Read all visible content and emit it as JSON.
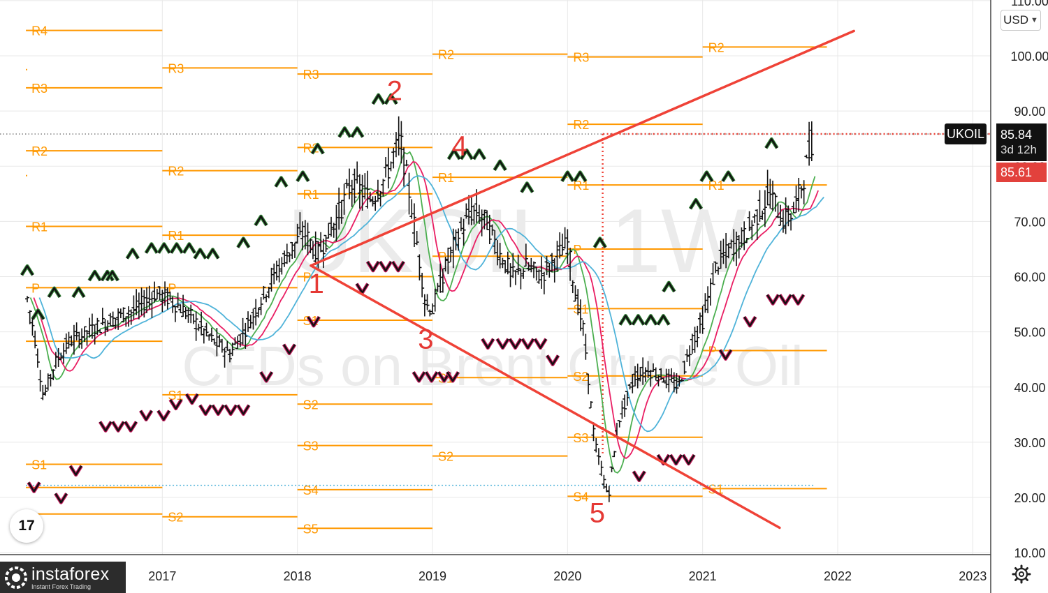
{
  "chart_data": {
    "type": "candlestick",
    "symbol": "UKOIL",
    "timeframe": "1W",
    "watermark_symbol": "UKOIL, 1W",
    "watermark_desc": "CFDs on Brent Crude Oil",
    "currency": "USD",
    "y_ticks": [
      "10.00",
      "20.00",
      "30.00",
      "40.00",
      "50.00",
      "60.00",
      "70.00",
      "80.00",
      "90.00",
      "100.00",
      "110.00"
    ],
    "y_tick_values": [
      10,
      20,
      30,
      40,
      50,
      60,
      70,
      80,
      90,
      100,
      110
    ],
    "ylim": [
      10,
      110
    ],
    "x_ticks": [
      "2017",
      "2018",
      "2019",
      "2020",
      "2021",
      "2022",
      "2023"
    ],
    "x_tick_values": [
      2017,
      2018,
      2019,
      2020,
      2021,
      2022,
      2023
    ],
    "xlim": [
      2015.99,
      2023.1
    ],
    "current_price": "85.84",
    "countdown": "3d 12h",
    "last_price": "85.61",
    "current_value": 85.84,
    "last_value": 85.61,
    "price_series": [
      {
        "x": 2016.0,
        "y": 56
      },
      {
        "x": 2016.05,
        "y": 50
      },
      {
        "x": 2016.12,
        "y": 38
      },
      {
        "x": 2016.2,
        "y": 44
      },
      {
        "x": 2016.3,
        "y": 48
      },
      {
        "x": 2016.45,
        "y": 50
      },
      {
        "x": 2016.6,
        "y": 52
      },
      {
        "x": 2016.8,
        "y": 54
      },
      {
        "x": 2016.95,
        "y": 57
      },
      {
        "x": 2017.05,
        "y": 56
      },
      {
        "x": 2017.2,
        "y": 53
      },
      {
        "x": 2017.35,
        "y": 49
      },
      {
        "x": 2017.5,
        "y": 46
      },
      {
        "x": 2017.65,
        "y": 52
      },
      {
        "x": 2017.8,
        "y": 59
      },
      {
        "x": 2017.95,
        "y": 65
      },
      {
        "x": 2018.05,
        "y": 68
      },
      {
        "x": 2018.15,
        "y": 64
      },
      {
        "x": 2018.3,
        "y": 71
      },
      {
        "x": 2018.4,
        "y": 77
      },
      {
        "x": 2018.55,
        "y": 74
      },
      {
        "x": 2018.65,
        "y": 78
      },
      {
        "x": 2018.76,
        "y": 85
      },
      {
        "x": 2018.85,
        "y": 72
      },
      {
        "x": 2018.95,
        "y": 55
      },
      {
        "x": 2019.0,
        "y": 54
      },
      {
        "x": 2019.1,
        "y": 62
      },
      {
        "x": 2019.2,
        "y": 68
      },
      {
        "x": 2019.3,
        "y": 72
      },
      {
        "x": 2019.4,
        "y": 70
      },
      {
        "x": 2019.5,
        "y": 64
      },
      {
        "x": 2019.6,
        "y": 60
      },
      {
        "x": 2019.7,
        "y": 62
      },
      {
        "x": 2019.8,
        "y": 60
      },
      {
        "x": 2019.9,
        "y": 63
      },
      {
        "x": 2020.0,
        "y": 66
      },
      {
        "x": 2020.05,
        "y": 58
      },
      {
        "x": 2020.12,
        "y": 50
      },
      {
        "x": 2020.2,
        "y": 30
      },
      {
        "x": 2020.3,
        "y": 20
      },
      {
        "x": 2020.38,
        "y": 34
      },
      {
        "x": 2020.5,
        "y": 42
      },
      {
        "x": 2020.6,
        "y": 43
      },
      {
        "x": 2020.7,
        "y": 42
      },
      {
        "x": 2020.82,
        "y": 40
      },
      {
        "x": 2020.92,
        "y": 48
      },
      {
        "x": 2021.0,
        "y": 52
      },
      {
        "x": 2021.1,
        "y": 62
      },
      {
        "x": 2021.2,
        "y": 65
      },
      {
        "x": 2021.3,
        "y": 67
      },
      {
        "x": 2021.4,
        "y": 71
      },
      {
        "x": 2021.5,
        "y": 75
      },
      {
        "x": 2021.6,
        "y": 70
      },
      {
        "x": 2021.68,
        "y": 72
      },
      {
        "x": 2021.75,
        "y": 78
      },
      {
        "x": 2021.82,
        "y": 85.84
      }
    ],
    "ma_series": [
      {
        "name": "",
        "color": "#4caf50",
        "offset": 0.04
      },
      {
        "name": "",
        "color": "#e91e63",
        "offset": 0.08
      },
      {
        "name": "",
        "color": "#4fb3d9",
        "offset": 0.15
      }
    ],
    "pivot_levels": [
      {
        "label": "R4",
        "y": 104.6,
        "x0": 2015.99,
        "x1": 2017.0
      },
      {
        "label": "",
        "y": 97.5,
        "x0": 2015.99,
        "x1": 2016.0
      },
      {
        "label": "R3",
        "y": 94.2,
        "x0": 2015.99,
        "x1": 2017.0
      },
      {
        "label": "R2",
        "y": 82.8,
        "x0": 2015.99,
        "x1": 2017.0
      },
      {
        "label": "",
        "y": 78.3,
        "x0": 2015.99,
        "x1": 2016.0
      },
      {
        "label": "R1",
        "y": 69.1,
        "x0": 2015.99,
        "x1": 2017.0
      },
      {
        "label": "P",
        "y": 58.0,
        "x0": 2015.99,
        "x1": 2017.0
      },
      {
        "label": "",
        "y": 48.3,
        "x0": 2015.99,
        "x1": 2017.0
      },
      {
        "label": "S1",
        "y": 26.0,
        "x0": 2015.99,
        "x1": 2017.0
      },
      {
        "label": "",
        "y": 21.8,
        "x0": 2015.99,
        "x1": 2017.0
      },
      {
        "label": "",
        "y": 17.0,
        "x0": 2015.99,
        "x1": 2017.0
      },
      {
        "label": "R3",
        "y": 97.8,
        "x0": 2017.0,
        "x1": 2018.0
      },
      {
        "label": "R2",
        "y": 79.2,
        "x0": 2017.0,
        "x1": 2018.0
      },
      {
        "label": "R1",
        "y": 67.5,
        "x0": 2017.0,
        "x1": 2018.0
      },
      {
        "label": "P",
        "y": 58.0,
        "x0": 2017.0,
        "x1": 2018.0
      },
      {
        "label": "S1",
        "y": 38.6,
        "x0": 2017.0,
        "x1": 2018.0
      },
      {
        "label": "S2",
        "y": 16.5,
        "x0": 2017.0,
        "x1": 2018.0
      },
      {
        "label": "R3",
        "y": 96.7,
        "x0": 2018.0,
        "x1": 2019.0
      },
      {
        "label": "R2",
        "y": 83.4,
        "x0": 2018.0,
        "x1": 2019.0
      },
      {
        "label": "R1",
        "y": 75.0,
        "x0": 2018.0,
        "x1": 2019.0
      },
      {
        "label": "P",
        "y": 60.0,
        "x0": 2018.0,
        "x1": 2019.0
      },
      {
        "label": "S1",
        "y": 52.1,
        "x0": 2018.0,
        "x1": 2019.0
      },
      {
        "label": "S2",
        "y": 36.9,
        "x0": 2018.0,
        "x1": 2019.0
      },
      {
        "label": "S3",
        "y": 29.4,
        "x0": 2018.0,
        "x1": 2019.0
      },
      {
        "label": "S4",
        "y": 21.4,
        "x0": 2018.0,
        "x1": 2019.0
      },
      {
        "label": "S5",
        "y": 14.4,
        "x0": 2018.0,
        "x1": 2019.0
      },
      {
        "label": "R2",
        "y": 100.3,
        "x0": 2019.0,
        "x1": 2020.0
      },
      {
        "label": "R1",
        "y": 78.0,
        "x0": 2019.0,
        "x1": 2020.0
      },
      {
        "label": "P",
        "y": 63.7,
        "x0": 2019.0,
        "x1": 2020.0
      },
      {
        "label": "S1",
        "y": 41.7,
        "x0": 2019.0,
        "x1": 2020.0
      },
      {
        "label": "S2",
        "y": 27.5,
        "x0": 2019.0,
        "x1": 2020.0
      },
      {
        "label": "R3",
        "y": 99.8,
        "x0": 2020.0,
        "x1": 2021.0
      },
      {
        "label": "R2",
        "y": 87.6,
        "x0": 2020.0,
        "x1": 2021.0
      },
      {
        "label": "R1",
        "y": 76.6,
        "x0": 2020.0,
        "x1": 2021.0
      },
      {
        "label": "P",
        "y": 65.0,
        "x0": 2020.0,
        "x1": 2021.0
      },
      {
        "label": "S1",
        "y": 54.2,
        "x0": 2020.0,
        "x1": 2021.0
      },
      {
        "label": "S2",
        "y": 42.0,
        "x0": 2020.0,
        "x1": 2021.0
      },
      {
        "label": "S3",
        "y": 30.9,
        "x0": 2020.0,
        "x1": 2021.0
      },
      {
        "label": "S4",
        "y": 20.2,
        "x0": 2020.0,
        "x1": 2021.0
      },
      {
        "label": "R2",
        "y": 101.6,
        "x0": 2021.0,
        "x1": 2021.92
      },
      {
        "label": "R1",
        "y": 76.6,
        "x0": 2021.0,
        "x1": 2021.92
      },
      {
        "label": "P",
        "y": 46.6,
        "x0": 2021.0,
        "x1": 2021.92
      },
      {
        "label": "S1",
        "y": 21.6,
        "x0": 2021.0,
        "x1": 2021.92
      }
    ],
    "trend_lines": [
      {
        "x0": 2018.1,
        "y0": 62,
        "x1": 2022.12,
        "y1": 104.5
      },
      {
        "x0": 2018.1,
        "y0": 62,
        "x1": 2021.57,
        "y1": 14.5
      }
    ],
    "wave_labels": [
      {
        "text": "1",
        "x": 2018.14,
        "y": 57
      },
      {
        "text": "2",
        "x": 2018.72,
        "y": 92
      },
      {
        "text": "3",
        "x": 2018.95,
        "y": 47
      },
      {
        "text": "4",
        "x": 2019.2,
        "y": 82
      },
      {
        "text": "5",
        "x": 2020.22,
        "y": 15.5
      }
    ],
    "fractal_up_groups": [
      {
        "x": 2016.0,
        "y": 61,
        "n": 1
      },
      {
        "x": 2016.2,
        "y": 57,
        "n": 1
      },
      {
        "x": 2016.08,
        "y": 53,
        "n": 1
      },
      {
        "x": 2016.38,
        "y": 57,
        "n": 1
      },
      {
        "x": 2016.5,
        "y": 60,
        "n": 2
      },
      {
        "x": 2016.63,
        "y": 60,
        "n": 1
      },
      {
        "x": 2016.78,
        "y": 64,
        "n": 1
      },
      {
        "x": 2016.92,
        "y": 65,
        "n": 4
      },
      {
        "x": 2017.28,
        "y": 64,
        "n": 2
      },
      {
        "x": 2017.6,
        "y": 66,
        "n": 1
      },
      {
        "x": 2017.73,
        "y": 70,
        "n": 1
      },
      {
        "x": 2017.88,
        "y": 77,
        "n": 1
      },
      {
        "x": 2018.04,
        "y": 78,
        "n": 1
      },
      {
        "x": 2018.15,
        "y": 83,
        "n": 1
      },
      {
        "x": 2018.35,
        "y": 86,
        "n": 2
      },
      {
        "x": 2018.6,
        "y": 92,
        "n": 2
      },
      {
        "x": 2019.16,
        "y": 82,
        "n": 3
      },
      {
        "x": 2019.5,
        "y": 80,
        "n": 1
      },
      {
        "x": 2019.7,
        "y": 76,
        "n": 1
      },
      {
        "x": 2020.0,
        "y": 78,
        "n": 2
      },
      {
        "x": 2020.24,
        "y": 66,
        "n": 1
      },
      {
        "x": 2020.43,
        "y": 52,
        "n": 4
      },
      {
        "x": 2020.75,
        "y": 58,
        "n": 1
      },
      {
        "x": 2020.95,
        "y": 73,
        "n": 1
      },
      {
        "x": 2021.03,
        "y": 78,
        "n": 1
      },
      {
        "x": 2021.19,
        "y": 78,
        "n": 1
      },
      {
        "x": 2021.51,
        "y": 84,
        "n": 1
      }
    ],
    "fractal_down_groups": [
      {
        "x": 2016.05,
        "y": 22,
        "n": 1
      },
      {
        "x": 2016.25,
        "y": 20,
        "n": 1
      },
      {
        "x": 2016.36,
        "y": 25,
        "n": 1
      },
      {
        "x": 2016.58,
        "y": 33,
        "n": 3
      },
      {
        "x": 2016.88,
        "y": 35,
        "n": 1
      },
      {
        "x": 2017.01,
        "y": 35,
        "n": 1
      },
      {
        "x": 2017.1,
        "y": 37,
        "n": 1
      },
      {
        "x": 2017.22,
        "y": 38,
        "n": 1
      },
      {
        "x": 2017.32,
        "y": 36,
        "n": 3
      },
      {
        "x": 2017.6,
        "y": 36,
        "n": 1
      },
      {
        "x": 2017.77,
        "y": 42,
        "n": 1
      },
      {
        "x": 2017.94,
        "y": 47,
        "n": 1
      },
      {
        "x": 2018.12,
        "y": 52,
        "n": 1
      },
      {
        "x": 2018.48,
        "y": 58,
        "n": 1
      },
      {
        "x": 2018.56,
        "y": 62,
        "n": 3
      },
      {
        "x": 2018.9,
        "y": 42,
        "n": 3
      },
      {
        "x": 2019.15,
        "y": 42,
        "n": 1
      },
      {
        "x": 2019.41,
        "y": 48,
        "n": 1
      },
      {
        "x": 2019.52,
        "y": 48,
        "n": 4
      },
      {
        "x": 2019.89,
        "y": 45,
        "n": 1
      },
      {
        "x": 2020.53,
        "y": 24,
        "n": 1
      },
      {
        "x": 2020.71,
        "y": 27,
        "n": 3
      },
      {
        "x": 2021.17,
        "y": 46,
        "n": 1
      },
      {
        "x": 2021.35,
        "y": 52,
        "n": 1
      },
      {
        "x": 2021.52,
        "y": 56,
        "n": 3
      }
    ],
    "crosshair": {
      "x": 2020.26,
      "y": 85.84
    },
    "horizontal_dotted": {
      "y": 22.2,
      "x0": 2015.99,
      "x1": 2021.82
    },
    "title": "",
    "xlabel": "",
    "ylabel": "",
    "grid": true
  },
  "colors": {
    "pivot": "#ff9800",
    "trend": "#ef4237",
    "wave": "#e53935",
    "candle": "#111111",
    "grid": "#e8e8e8",
    "watermark": "#ebebeb",
    "axis_text": "#222222",
    "last_price": "#e2413c"
  },
  "branding": {
    "instaforex_name": "instaforex",
    "instaforex_tagline": "Instant Forex Trading",
    "tv_logo_text": "17"
  },
  "icons": {
    "settings": "gear-icon",
    "logo": "instaforex-logo-icon",
    "currency_menu": "chevron-down-icon"
  }
}
